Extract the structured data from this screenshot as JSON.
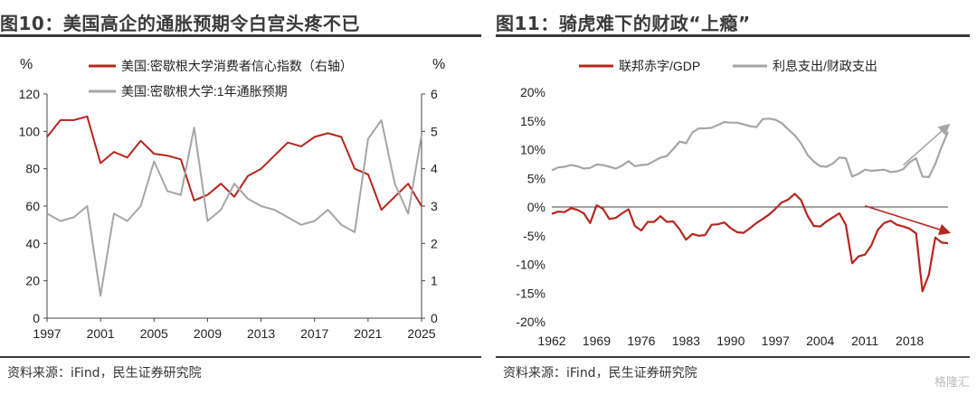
{
  "left": {
    "title": "图10：美国高企的通胀预期令白宫头疼不已",
    "source": "资料来源：iFind，民生证券研究院",
    "y_left_unit": "%",
    "y_right_unit": "%",
    "chart_data": {
      "type": "line",
      "x_ticks": [
        "1997",
        "2001",
        "2005",
        "2009",
        "2013",
        "2017",
        "2021",
        "2025"
      ],
      "ylim_left": [
        0,
        120
      ],
      "yticks_left": [
        "0",
        "20",
        "40",
        "60",
        "80",
        "100",
        "120"
      ],
      "ylim_right": [
        0,
        6
      ],
      "yticks_right": [
        "0",
        "1",
        "2",
        "3",
        "4",
        "5",
        "6"
      ],
      "legend_position": "top",
      "series": [
        {
          "name": "美国:密歇根大学消费者信心指数（右轴）",
          "color": "#b5261e",
          "axis": "left",
          "x": [
            1997,
            1998,
            1999,
            2000,
            2001,
            2002,
            2003,
            2004,
            2005,
            2006,
            2007,
            2008,
            2009,
            2010,
            2011,
            2012,
            2013,
            2014,
            2015,
            2016,
            2017,
            2018,
            2019,
            2020,
            2021,
            2022,
            2023,
            2024,
            2025
          ],
          "y": [
            97,
            106,
            106,
            108,
            83,
            89,
            86,
            95,
            88,
            87,
            85,
            63,
            66,
            72,
            65,
            76,
            80,
            87,
            94,
            92,
            97,
            99,
            97,
            80,
            77,
            58,
            65,
            72,
            60
          ]
        },
        {
          "name": "美国:密歇根大学:1年通胀预期",
          "color": "#a6a6a6",
          "axis": "right",
          "x": [
            1997,
            1998,
            1999,
            2000,
            2001,
            2002,
            2003,
            2004,
            2005,
            2006,
            2007,
            2008,
            2009,
            2010,
            2011,
            2012,
            2013,
            2014,
            2015,
            2016,
            2017,
            2018,
            2019,
            2020,
            2021,
            2022,
            2023,
            2024,
            2025
          ],
          "y": [
            2.8,
            2.6,
            2.7,
            3.0,
            0.6,
            2.8,
            2.6,
            3.0,
            4.2,
            3.4,
            3.3,
            5.1,
            2.6,
            2.9,
            3.6,
            3.2,
            3.0,
            2.9,
            2.7,
            2.5,
            2.6,
            2.9,
            2.5,
            2.3,
            4.8,
            5.3,
            3.6,
            2.8,
            4.9
          ]
        }
      ]
    }
  },
  "right": {
    "title": "图11：骑虎难下的财政“上瘾”",
    "source": "资料来源：iFind，民生证券研究院",
    "watermark": "格隆汇",
    "chart_data": {
      "type": "line",
      "x_ticks": [
        "1962",
        "1969",
        "1976",
        "1983",
        "1990",
        "1997",
        "2004",
        "2011",
        "2018"
      ],
      "ylim": [
        -20,
        20
      ],
      "yticks": [
        "-20%",
        "-15%",
        "-10%",
        "-5%",
        "0%",
        "5%",
        "10%",
        "15%",
        "20%"
      ],
      "legend_position": "top",
      "series": [
        {
          "name": "联邦赤字/GDP",
          "color": "#b5261e",
          "x": [
            1962,
            1963,
            1964,
            1965,
            1966,
            1967,
            1968,
            1969,
            1970,
            1971,
            1972,
            1973,
            1974,
            1975,
            1976,
            1977,
            1978,
            1979,
            1980,
            1981,
            1982,
            1983,
            1984,
            1985,
            1986,
            1987,
            1988,
            1989,
            1990,
            1991,
            1992,
            1993,
            1994,
            1995,
            1996,
            1997,
            1998,
            1999,
            2000,
            2001,
            2002,
            2003,
            2004,
            2005,
            2006,
            2007,
            2008,
            2009,
            2010,
            2011,
            2012,
            2013,
            2014,
            2015,
            2016,
            2017,
            2018,
            2019,
            2020,
            2021,
            2022,
            2023,
            2024
          ],
          "y": [
            -1.2,
            -0.8,
            -0.9,
            -0.2,
            -0.5,
            -1.1,
            -2.8,
            0.3,
            -0.3,
            -2.1,
            -1.9,
            -1.1,
            -0.4,
            -3.3,
            -4.1,
            -2.6,
            -2.6,
            -1.6,
            -2.6,
            -2.5,
            -3.9,
            -5.7,
            -4.7,
            -5.0,
            -4.9,
            -3.1,
            -3.0,
            -2.7,
            -3.7,
            -4.4,
            -4.5,
            -3.7,
            -2.8,
            -2.1,
            -1.3,
            -0.3,
            0.8,
            1.3,
            2.3,
            1.2,
            -1.5,
            -3.3,
            -3.4,
            -2.5,
            -1.8,
            -1.1,
            -3.1,
            -9.8,
            -8.6,
            -8.3,
            -6.7,
            -4.0,
            -2.8,
            -2.4,
            -3.1,
            -3.4,
            -3.8,
            -4.6,
            -14.7,
            -11.8,
            -5.3,
            -6.2,
            -6.3
          ]
        },
        {
          "name": "利息支出/财政支出",
          "color": "#a6a6a6",
          "x": [
            1962,
            1963,
            1964,
            1965,
            1966,
            1967,
            1968,
            1969,
            1970,
            1971,
            1972,
            1973,
            1974,
            1975,
            1976,
            1977,
            1978,
            1979,
            1980,
            1981,
            1982,
            1983,
            1984,
            1985,
            1986,
            1987,
            1988,
            1989,
            1990,
            1991,
            1992,
            1993,
            1994,
            1995,
            1996,
            1997,
            1998,
            1999,
            2000,
            2001,
            2002,
            2003,
            2004,
            2005,
            2006,
            2007,
            2008,
            2009,
            2010,
            2011,
            2012,
            2013,
            2014,
            2015,
            2016,
            2017,
            2018,
            2019,
            2020,
            2021,
            2022,
            2023,
            2024
          ],
          "y": [
            6.4,
            6.9,
            7.0,
            7.3,
            7.1,
            6.7,
            6.8,
            7.4,
            7.3,
            7.0,
            6.7,
            7.2,
            8.0,
            7.1,
            7.3,
            7.4,
            8.0,
            8.6,
            8.9,
            10.1,
            11.4,
            11.1,
            13.0,
            13.7,
            13.7,
            13.8,
            14.3,
            14.8,
            14.7,
            14.7,
            14.4,
            14.1,
            13.9,
            15.3,
            15.4,
            15.2,
            14.6,
            13.5,
            12.5,
            11.1,
            9.1,
            7.9,
            7.1,
            7.0,
            7.6,
            8.6,
            8.5,
            5.3,
            5.8,
            6.5,
            6.3,
            6.4,
            6.5,
            6.1,
            6.2,
            6.6,
            7.8,
            8.5,
            5.3,
            5.2,
            7.5,
            10.5,
            13.1
          ]
        }
      ],
      "annotations": [
        {
          "type": "arrow",
          "color": "#a6a6a6",
          "from": [
            2017,
            7.3
          ],
          "to": [
            2024,
            14.2
          ]
        },
        {
          "type": "arrow",
          "color": "#b5261e",
          "from": [
            2011,
            0.2
          ],
          "to": [
            2024,
            -4.4
          ]
        }
      ]
    }
  }
}
